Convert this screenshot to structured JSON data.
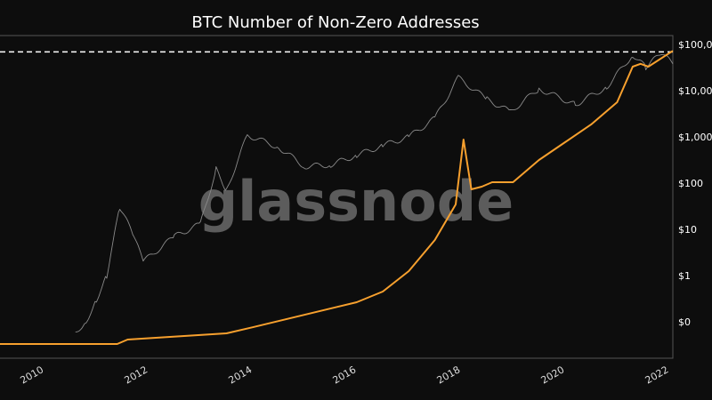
{
  "chart_data": {
    "type": "line",
    "title": "BTC Number of Non-Zero Addresses",
    "watermark": "glassnode",
    "x_ticks": [
      "2010",
      "2012",
      "2014",
      "2016",
      "2018",
      "2020",
      "2022"
    ],
    "xlim": [
      2009.15,
      2022.07
    ],
    "y_right": {
      "scale": "log",
      "range": [
        0.04,
        120000
      ],
      "ticks": [
        {
          "value": 100000,
          "label": "$100,000"
        },
        {
          "value": 10000,
          "label": "$10,000"
        },
        {
          "value": 1000,
          "label": "$1,000"
        },
        {
          "value": 100,
          "label": "$100"
        },
        {
          "value": 10,
          "label": "$10"
        },
        {
          "value": 1,
          "label": "$1"
        },
        {
          "value": 0.1,
          "label": "$0"
        }
      ]
    },
    "reference_line": {
      "value": 69000,
      "style": "dashed",
      "color": "#ffffff"
    },
    "grid": false,
    "series": [
      {
        "color": "#8a8a8a",
        "axis": "right",
        "x": [
          2010.6,
          2010.8,
          2011.0,
          2011.2,
          2011.45,
          2011.7,
          2011.9,
          2012.5,
          2013.0,
          2013.3,
          2013.5,
          2013.9,
          2014.5,
          2015.0,
          2015.5,
          2016.0,
          2016.5,
          2017.0,
          2017.5,
          2017.95,
          2018.5,
          2018.95,
          2019.5,
          2020.2,
          2020.8,
          2021.3,
          2021.55,
          2021.85,
          2022.07
        ],
        "values": [
          0.06,
          0.1,
          0.3,
          1,
          30,
          8,
          2,
          7,
          13,
          200,
          70,
          1100,
          600,
          230,
          250,
          400,
          650,
          1000,
          2500,
          19000,
          6500,
          3500,
          11000,
          5000,
          12000,
          60000,
          32000,
          65000,
          38000
        ]
      },
      {
        "color": "#f7a02e",
        "axis": "hidden-log",
        "x": [
          2009.15,
          2011.4,
          2011.6,
          2013.5,
          2014.0,
          2016.0,
          2016.5,
          2017.0,
          2017.5,
          2017.9,
          2018.05,
          2018.2,
          2018.4,
          2018.6,
          2019.0,
          2019.5,
          2020.0,
          2020.5,
          2021.0,
          2021.3,
          2021.45,
          2021.6,
          2022.07
        ],
        "values": [
          20,
          20,
          25,
          34,
          46,
          160,
          273,
          755,
          3560,
          20900,
          530000,
          44400,
          50700,
          63200,
          63200,
          191000,
          464000,
          1120000,
          3400000,
          20000000,
          23000000,
          20000000,
          44000000
        ]
      }
    ]
  }
}
